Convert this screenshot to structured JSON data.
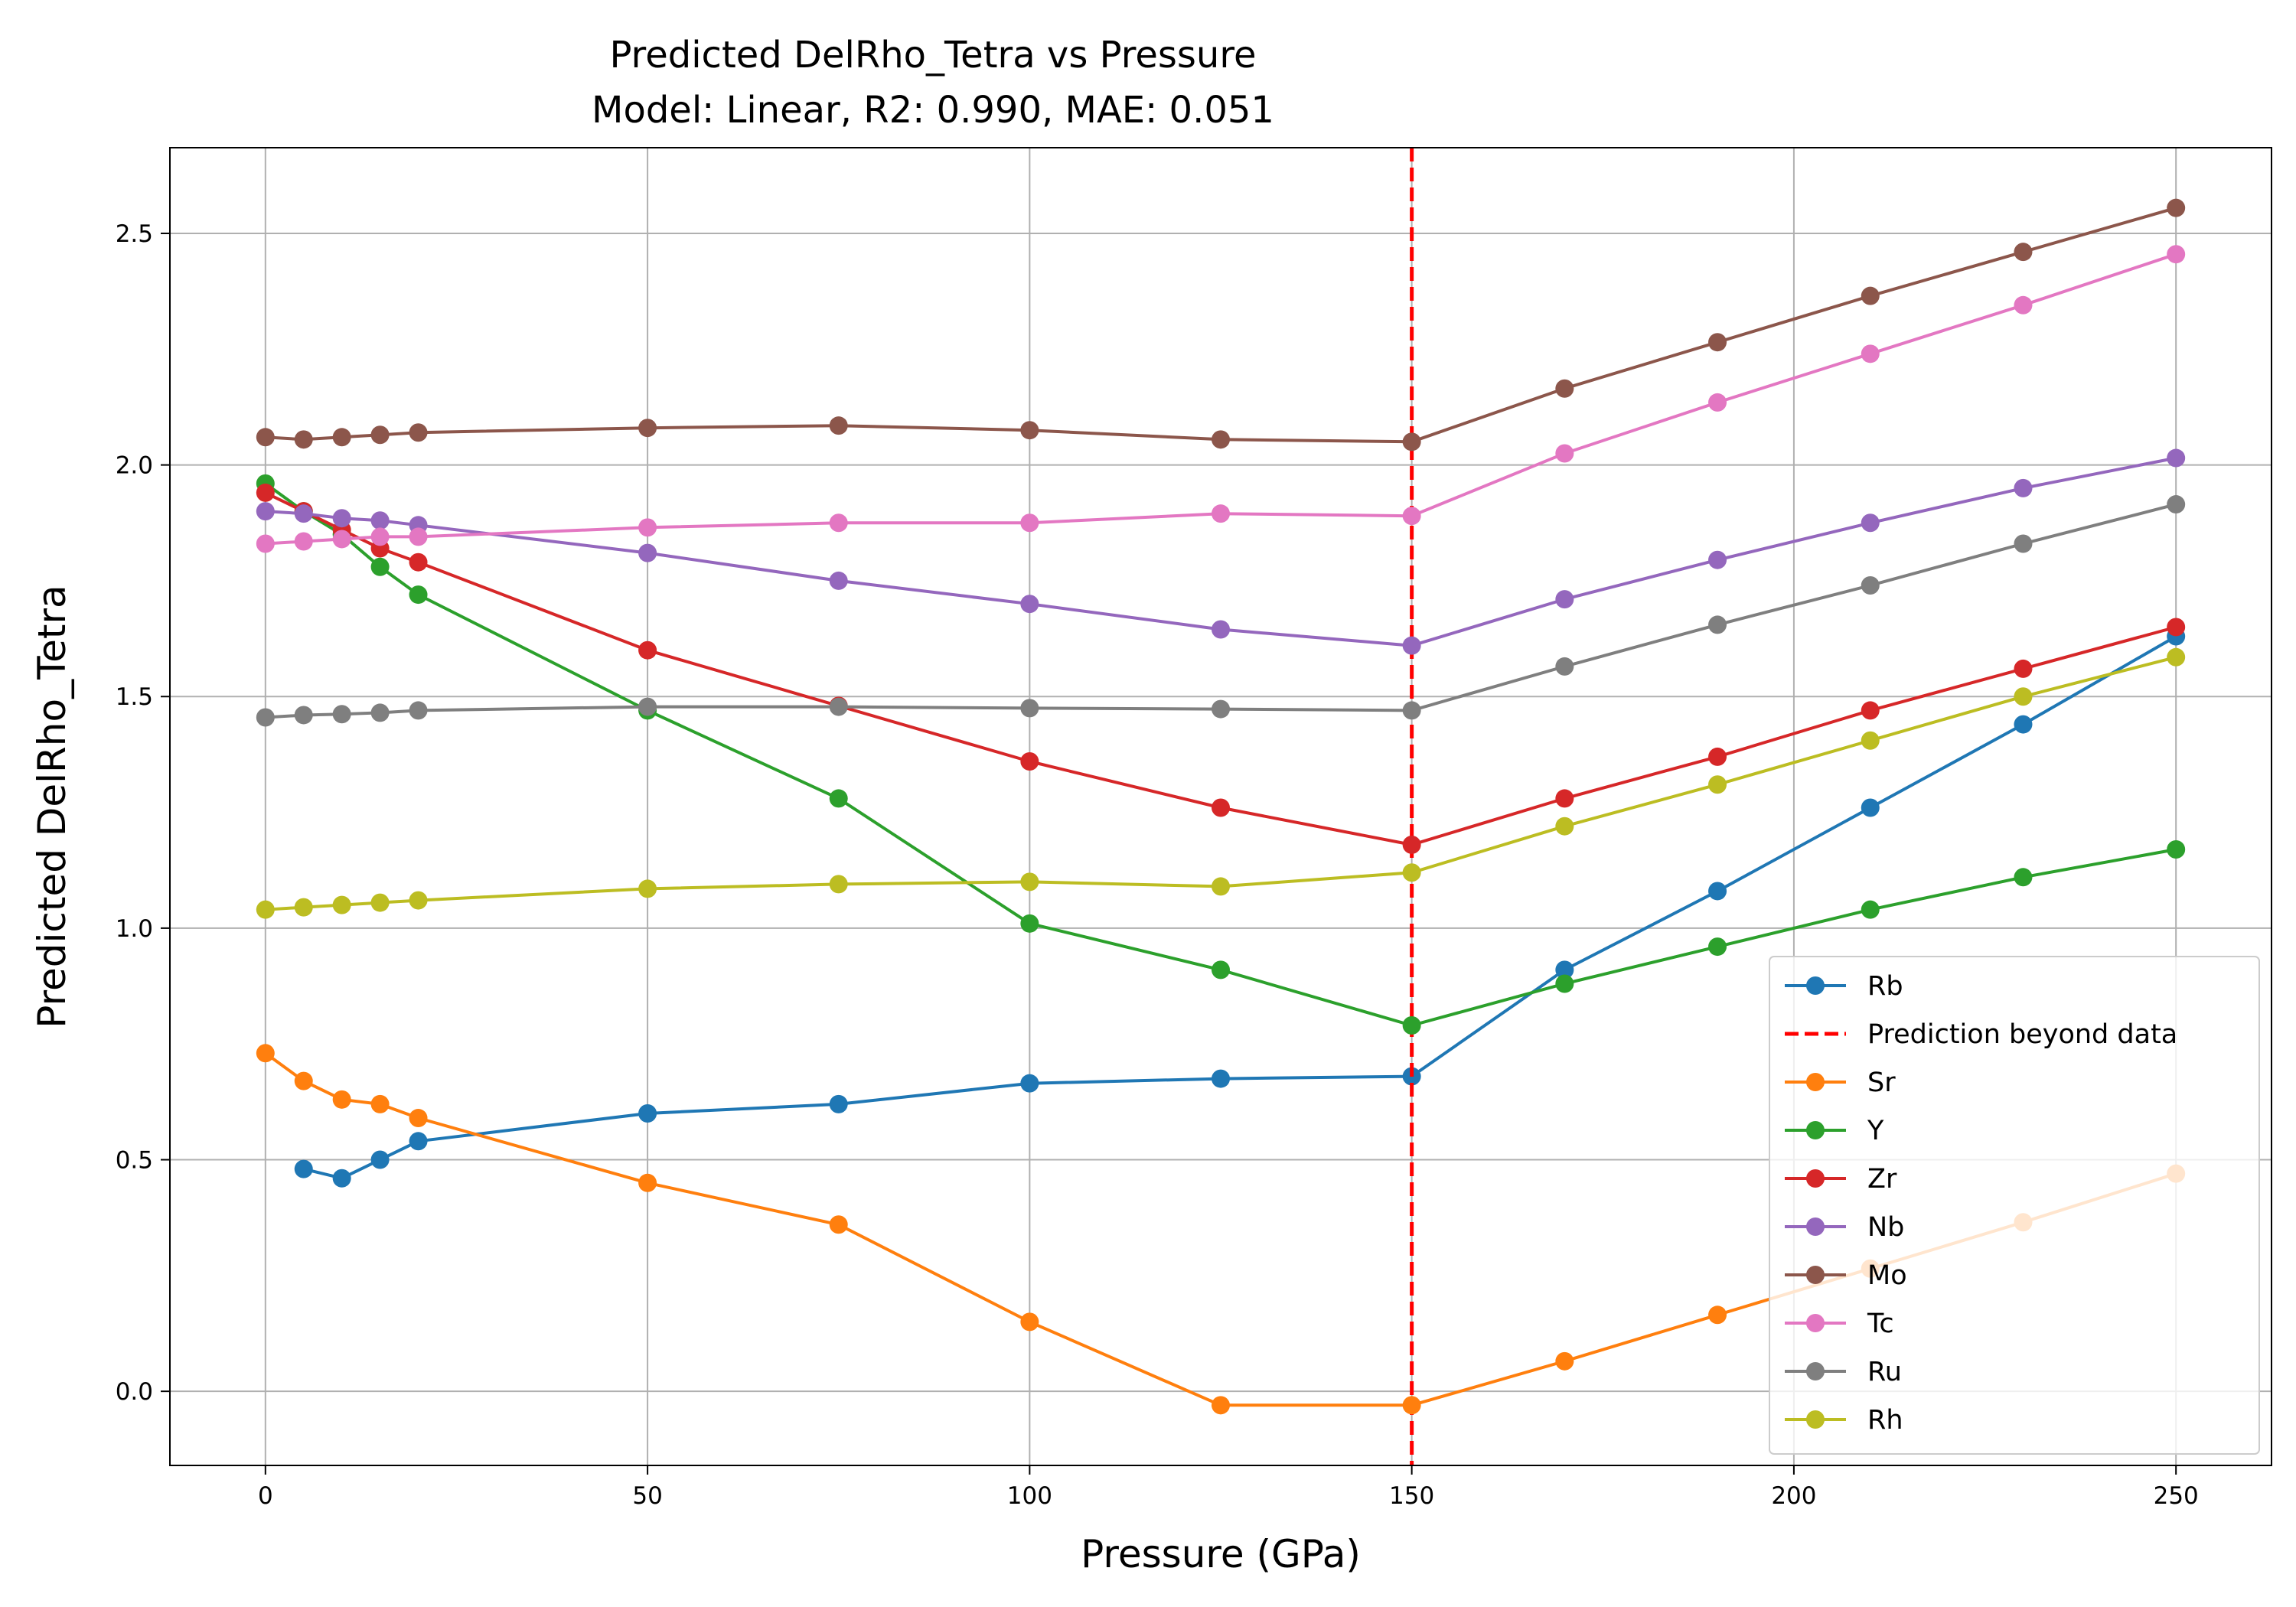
{
  "chart_data": {
    "type": "line",
    "title_lines": [
      "Predicted DelRho_Tetra vs Pressure",
      "Model: Linear, R2: 0.990, MAE: 0.051"
    ],
    "xlabel": "Pressure (GPa)",
    "ylabel": "Predicted DelRho_Tetra",
    "xlim": [
      -12.5,
      262.5
    ],
    "ylim": [
      -0.16,
      2.685
    ],
    "xticks": [
      0,
      50,
      100,
      150,
      200,
      250
    ],
    "yticks": [
      0.0,
      0.5,
      1.0,
      1.5,
      2.0,
      2.5
    ],
    "xtick_labels": [
      "0",
      "50",
      "100",
      "150",
      "200",
      "250"
    ],
    "ytick_labels": [
      "0.0",
      "0.5",
      "1.0",
      "1.5",
      "2.0",
      "2.5"
    ],
    "grid": true,
    "legend_position": "lower right",
    "vline": {
      "x": 150,
      "label": "Prediction beyond data",
      "color": "#ff0000",
      "style": "dashed"
    },
    "series": [
      {
        "name": "Rb",
        "color": "#1f77b4",
        "x": [
          5,
          10,
          15,
          20,
          50,
          75,
          100,
          125,
          150,
          170,
          190,
          210,
          230,
          250
        ],
        "y": [
          0.48,
          0.46,
          0.5,
          0.54,
          0.6,
          0.62,
          0.665,
          0.675,
          0.68,
          0.91,
          1.08,
          1.26,
          1.44,
          1.63
        ]
      },
      {
        "name": "Sr",
        "color": "#ff7f0e",
        "x": [
          0,
          5,
          10,
          15,
          20,
          50,
          75,
          100,
          125,
          150,
          170,
          190,
          210,
          230,
          250
        ],
        "y": [
          0.73,
          0.67,
          0.63,
          0.62,
          0.59,
          0.45,
          0.36,
          0.15,
          -0.03,
          -0.03,
          0.065,
          0.165,
          0.265,
          0.365,
          0.47
        ]
      },
      {
        "name": "Y",
        "color": "#2ca02c",
        "x": [
          0,
          5,
          10,
          15,
          20,
          50,
          75,
          100,
          125,
          150,
          170,
          190,
          210,
          230,
          250
        ],
        "y": [
          1.96,
          1.9,
          1.85,
          1.78,
          1.72,
          1.47,
          1.28,
          1.01,
          0.91,
          0.79,
          0.88,
          0.96,
          1.04,
          1.11,
          1.17
        ]
      },
      {
        "name": "Zr",
        "color": "#d62728",
        "x": [
          0,
          5,
          10,
          15,
          20,
          50,
          75,
          100,
          125,
          150,
          170,
          190,
          210,
          230,
          250
        ],
        "y": [
          1.94,
          1.9,
          1.86,
          1.82,
          1.79,
          1.6,
          1.48,
          1.36,
          1.26,
          1.18,
          1.28,
          1.37,
          1.47,
          1.56,
          1.65
        ]
      },
      {
        "name": "Nb",
        "color": "#9467bd",
        "x": [
          0,
          5,
          10,
          15,
          20,
          50,
          75,
          100,
          125,
          150,
          170,
          190,
          210,
          230,
          250
        ],
        "y": [
          1.9,
          1.895,
          1.885,
          1.88,
          1.87,
          1.81,
          1.75,
          1.7,
          1.645,
          1.61,
          1.71,
          1.795,
          1.875,
          1.95,
          2.015
        ]
      },
      {
        "name": "Mo",
        "color": "#8c564b",
        "x": [
          0,
          5,
          10,
          15,
          20,
          50,
          75,
          100,
          125,
          150,
          170,
          190,
          210,
          230,
          250
        ],
        "y": [
          2.06,
          2.055,
          2.06,
          2.065,
          2.07,
          2.08,
          2.085,
          2.075,
          2.055,
          2.05,
          2.165,
          2.265,
          2.365,
          2.46,
          2.555
        ]
      },
      {
        "name": "Tc",
        "color": "#e377c2",
        "x": [
          0,
          5,
          10,
          15,
          20,
          50,
          75,
          100,
          125,
          150,
          170,
          190,
          210,
          230,
          250
        ],
        "y": [
          1.83,
          1.835,
          1.84,
          1.845,
          1.845,
          1.865,
          1.875,
          1.875,
          1.895,
          1.89,
          2.025,
          2.135,
          2.24,
          2.345,
          2.455
        ]
      },
      {
        "name": "Ru",
        "color": "#7f7f7f",
        "x": [
          0,
          5,
          10,
          15,
          20,
          50,
          75,
          100,
          125,
          150,
          170,
          190,
          210,
          230,
          250
        ],
        "y": [
          1.455,
          1.46,
          1.462,
          1.465,
          1.47,
          1.478,
          1.478,
          1.475,
          1.473,
          1.47,
          1.565,
          1.655,
          1.74,
          1.83,
          1.915
        ]
      },
      {
        "name": "Rh",
        "color": "#bcbd22",
        "x": [
          0,
          5,
          10,
          15,
          20,
          50,
          75,
          100,
          125,
          150,
          170,
          190,
          210,
          230,
          250
        ],
        "y": [
          1.04,
          1.045,
          1.05,
          1.055,
          1.06,
          1.085,
          1.095,
          1.1,
          1.09,
          1.12,
          1.22,
          1.31,
          1.405,
          1.5,
          1.585
        ]
      }
    ],
    "legend_order": [
      "Rb",
      "Prediction beyond data",
      "Sr",
      "Y",
      "Zr",
      "Nb",
      "Mo",
      "Tc",
      "Ru",
      "Rh"
    ]
  }
}
